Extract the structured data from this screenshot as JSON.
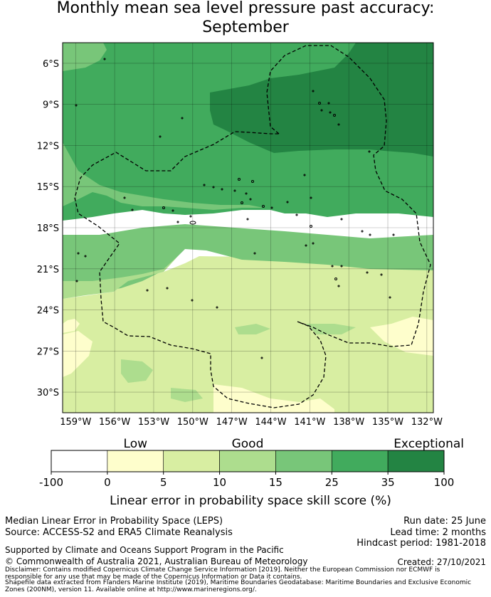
{
  "title_line1": "Monthly mean sea level pressure past accuracy:",
  "title_line2": "September",
  "map": {
    "lon_ticks": [
      "159°W",
      "156°W",
      "153°W",
      "150°W",
      "147°W",
      "144°W",
      "141°W",
      "138°W",
      "135°W",
      "132°W"
    ],
    "lat_ticks": [
      "6°S",
      "9°S",
      "12°S",
      "15°S",
      "18°S",
      "21°S",
      "24°S",
      "27°S",
      "30°S"
    ],
    "colors": {
      "c0": "#ffffff",
      "c1": "#fefecc",
      "c2": "#d8eea2",
      "c3": "#addd8e",
      "c4": "#78c679",
      "c5": "#41ab5d",
      "c6": "#238443"
    },
    "boundary_style": "dashed"
  },
  "colorbar": {
    "category_labels": [
      "Low",
      "Good",
      "Exceptional"
    ],
    "tick_labels": [
      "-100",
      "0",
      "5",
      "10",
      "15",
      "25",
      "35",
      "100"
    ],
    "xlabel": "Linear error in probability space skill score (%)"
  },
  "footer": {
    "left_line1": "Median Linear Error in Probability Space (LEPS)",
    "left_line2": "Source: ACCESS-S2 and ERA5 Climate Reanalysis",
    "right_line1": "Run date: 25 June",
    "right_line2": "Lead time: 2 months",
    "right_line3": "Hindcast period: 1981-2018",
    "support": "Supported by Climate and Oceans Support Program in the Pacific",
    "copyright": "© Commonwealth of Australia 2021, Australian Bureau of Meteorology",
    "created": "Created: 27/10/2021",
    "disclaimer1": "Disclaimer: Contains modified Copernicus Climate Change Service Information [2019]. Neither the European Commission nor ECMWF is responsible for any use that may be made of the Copernicus Information or Data it contains.",
    "disclaimer2": "Shapefile data extracted from Flanders Marine Institute (2019), Maritime Boundaries Geodatabase: Maritime Boundaries and Exclusive Economic Zones (200NM), version 11. Available online at http://www.marineregions.org/."
  }
}
